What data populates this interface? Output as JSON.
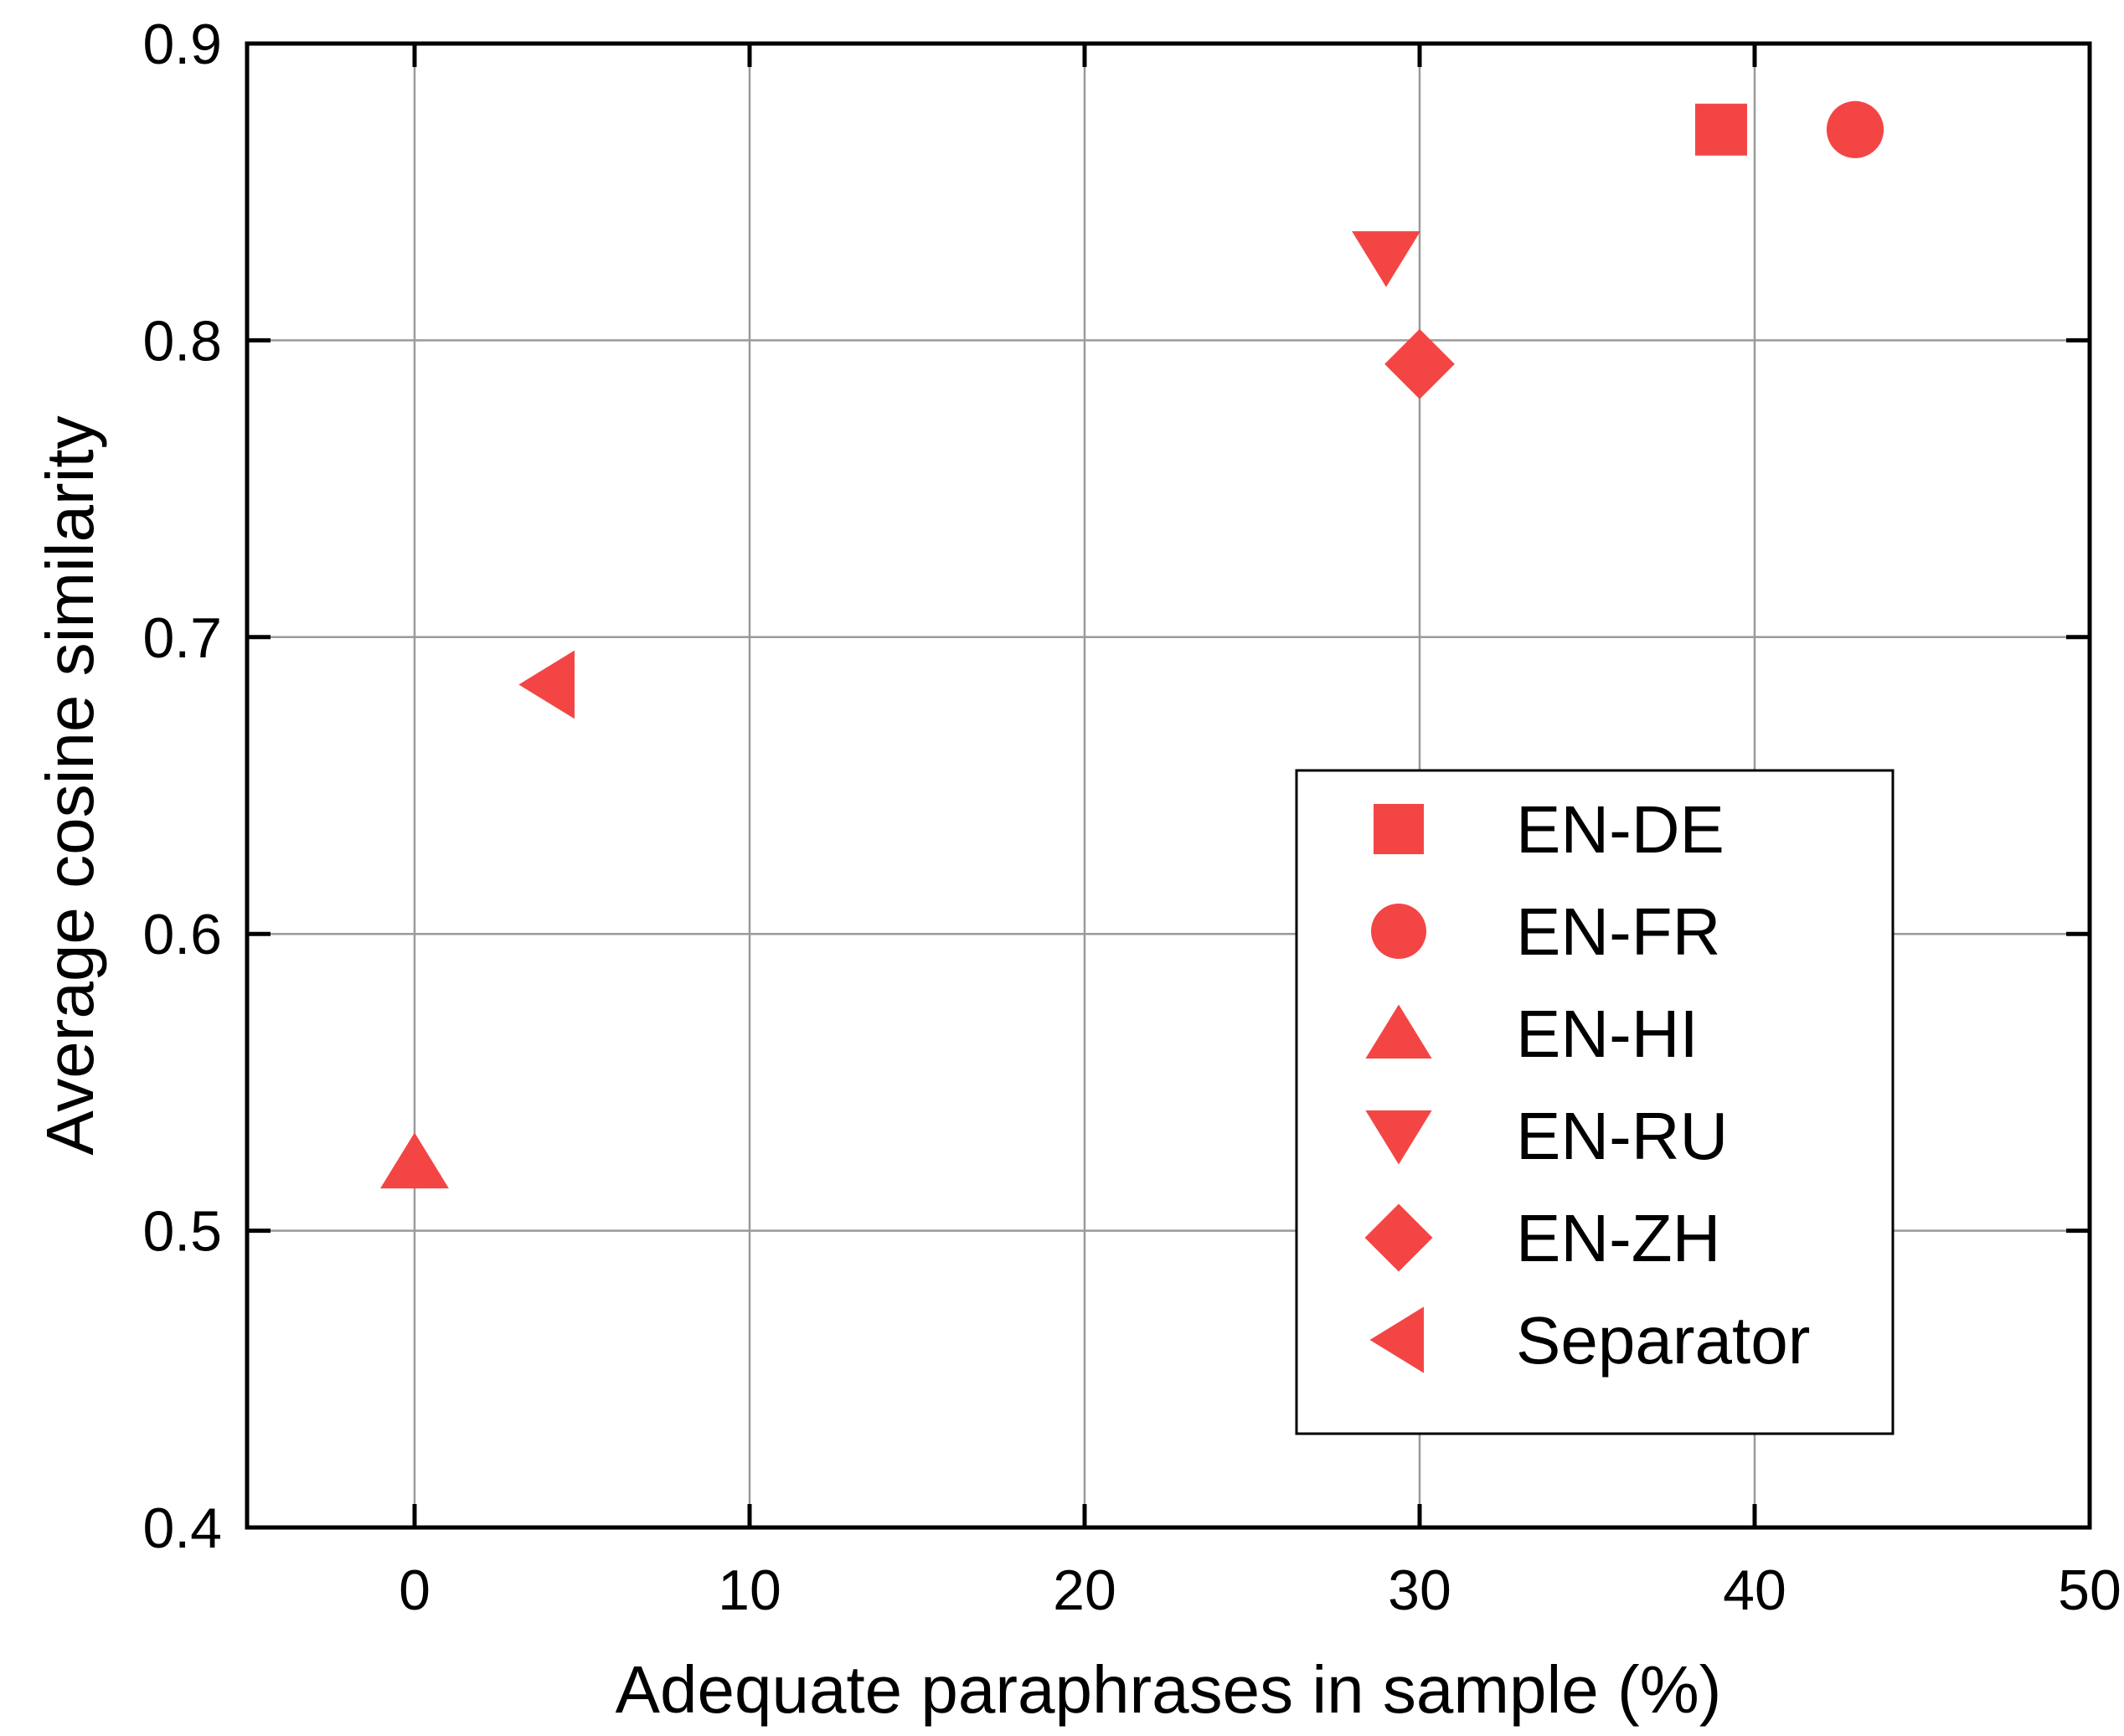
{
  "chart_data": {
    "type": "scatter",
    "xlabel": "Adequate paraphrases in sample (%)",
    "ylabel": "Average cosine similarity",
    "xlim": [
      -5,
      50
    ],
    "ylim": [
      0.4,
      0.9
    ],
    "xticks": [
      0,
      10,
      20,
      30,
      40,
      50
    ],
    "yticks": [
      0.4,
      0.5,
      0.6,
      0.7,
      0.8,
      0.9
    ],
    "xtick_labels": [
      "0",
      "10",
      "20",
      "30",
      "40",
      "50"
    ],
    "ytick_labels": [
      "0.4",
      "0.5",
      "0.6",
      "0.7",
      "0.8",
      "0.9"
    ],
    "grid": true,
    "legend_position": "center-right",
    "marker_color": "#f44545",
    "series": [
      {
        "name": "EN-DE",
        "marker": "square",
        "x": 39,
        "y": 0.871
      },
      {
        "name": "EN-FR",
        "marker": "circle",
        "x": 43,
        "y": 0.871
      },
      {
        "name": "EN-HI",
        "marker": "triangle-up",
        "x": 0,
        "y": 0.523
      },
      {
        "name": "EN-RU",
        "marker": "triangle-down",
        "x": 29,
        "y": 0.828
      },
      {
        "name": "EN-ZH",
        "marker": "diamond",
        "x": 30,
        "y": 0.792
      },
      {
        "name": "Separator",
        "marker": "triangle-left",
        "x": 4,
        "y": 0.684
      }
    ]
  }
}
